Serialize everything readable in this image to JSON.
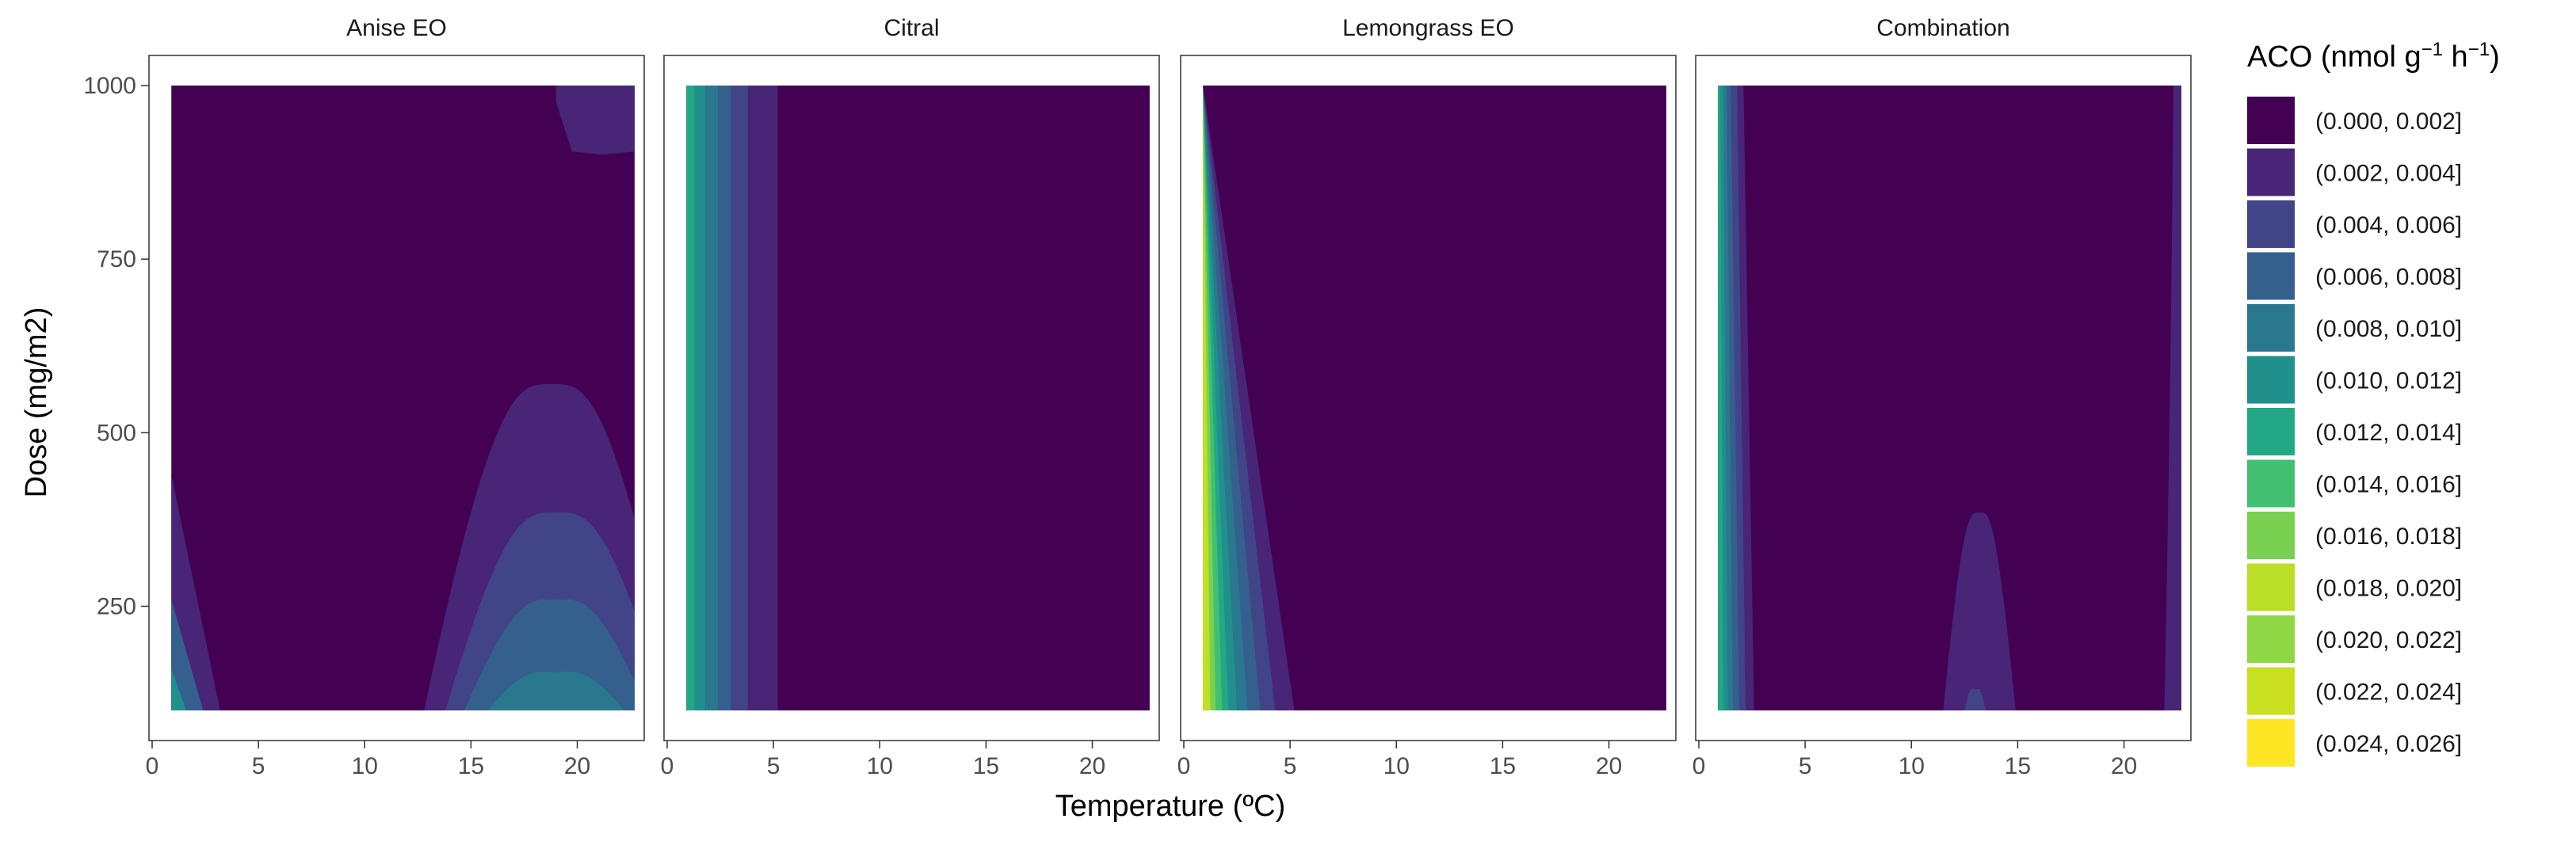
{
  "chart_data": {
    "type": "contour",
    "xlabel": "Temperature (ºC)",
    "ylabel": "Dose (mg/m2)",
    "xlim": [
      0,
      23
    ],
    "ylim": [
      100,
      1000
    ],
    "x_ticks": [
      0,
      5,
      10,
      15,
      20
    ],
    "y_ticks": [
      250,
      500,
      750,
      1000
    ],
    "grid": false,
    "legend_placement": "right",
    "legend": {
      "title": "ACO (nmol g",
      "title_sup1": "−1",
      "title_mid": " h",
      "title_sup2": "−1",
      "title_end": ")",
      "bins": [
        {
          "label": "(0.000, 0.002]",
          "color": "#440154"
        },
        {
          "label": "(0.002, 0.004]",
          "color": "#482576"
        },
        {
          "label": "(0.004, 0.006]",
          "color": "#414487"
        },
        {
          "label": "(0.006, 0.008]",
          "color": "#35608D"
        },
        {
          "label": "(0.008, 0.010]",
          "color": "#2A788E"
        },
        {
          "label": "(0.010, 0.012]",
          "color": "#21908C"
        },
        {
          "label": "(0.012, 0.014]",
          "color": "#22A884"
        },
        {
          "label": "(0.014, 0.016]",
          "color": "#43BF71"
        },
        {
          "label": "(0.016, 0.018]",
          "color": "#7AD151"
        },
        {
          "label": "(0.018, 0.020]",
          "color": "#BBDF27"
        },
        {
          "label": "(0.020, 0.022]",
          "color": "#8FD744"
        },
        {
          "label": "(0.022, 0.024]",
          "color": "#C8E020"
        },
        {
          "label": "(0.024, 0.026]",
          "color": "#FDE725"
        }
      ]
    },
    "panels": [
      {
        "name": "Anise EO",
        "background_level": 0,
        "regions": [
          {
            "level": 1,
            "kind": "bump",
            "x_center": 18.8,
            "half_width": 6.0,
            "peak_dose": 570,
            "base_dose": 100
          },
          {
            "level": 2,
            "kind": "bump",
            "x_center": 19.0,
            "half_width": 5.2,
            "peak_dose": 385,
            "base_dose": 100
          },
          {
            "level": 3,
            "kind": "bump",
            "x_center": 19.0,
            "half_width": 4.3,
            "peak_dose": 260,
            "base_dose": 100
          },
          {
            "level": 4,
            "kind": "bump",
            "x_center": 19.0,
            "half_width": 3.2,
            "peak_dose": 155,
            "base_dose": 100
          },
          {
            "level": 1,
            "kind": "corner",
            "x_start": 0.9,
            "x_end": 3.2,
            "dose_top": 440
          },
          {
            "level": 3,
            "kind": "corner",
            "x_start": 0.9,
            "x_end": 2.4,
            "dose_top": 260
          },
          {
            "level": 5,
            "kind": "corner",
            "x_start": 0.9,
            "x_end": 1.6,
            "dose_top": 160
          },
          {
            "level": 1,
            "kind": "top_right",
            "x_start": 19.0,
            "x_end": 22.7,
            "dose_bottom": 905
          }
        ]
      },
      {
        "name": "Citral",
        "background_level": 0,
        "stripes": [
          {
            "x_start": 0.9,
            "x_end": 1.3,
            "level": 6
          },
          {
            "x_start": 1.3,
            "x_end": 1.8,
            "level": 5
          },
          {
            "x_start": 1.8,
            "x_end": 2.4,
            "level": 4
          },
          {
            "x_start": 2.4,
            "x_end": 3.0,
            "level": 3
          },
          {
            "x_start": 3.0,
            "x_end": 3.8,
            "level": 2
          },
          {
            "x_start": 3.8,
            "x_end": 5.2,
            "level": 1
          }
        ]
      },
      {
        "name": "Lemongrass EO",
        "background_level": 0,
        "stripes_tapered": [
          {
            "x_bottom": 5.2,
            "level": 1
          },
          {
            "x_bottom": 4.3,
            "level": 2
          },
          {
            "x_bottom": 3.6,
            "level": 3
          },
          {
            "x_bottom": 3.0,
            "level": 4
          },
          {
            "x_bottom": 2.5,
            "level": 5
          },
          {
            "x_bottom": 2.1,
            "level": 6
          },
          {
            "x_bottom": 1.8,
            "level": 7
          },
          {
            "x_bottom": 1.5,
            "level": 8
          },
          {
            "x_bottom": 1.25,
            "level": 9
          },
          {
            "x_bottom": 1.05,
            "level": 11
          }
        ]
      },
      {
        "name": "Combination",
        "background_level": 0,
        "stripes_tapered": [
          {
            "x_top": 2.1,
            "x_bottom": 2.6,
            "level": 1
          },
          {
            "x_top": 1.8,
            "x_bottom": 2.2,
            "level": 2
          },
          {
            "x_top": 1.5,
            "x_bottom": 1.9,
            "level": 3
          },
          {
            "x_top": 1.3,
            "x_bottom": 1.6,
            "level": 4
          },
          {
            "x_top": 1.15,
            "x_bottom": 1.35,
            "level": 5
          },
          {
            "x_top": 1.0,
            "x_bottom": 1.15,
            "level": 6
          }
        ],
        "regions": [
          {
            "level": 1,
            "kind": "bump",
            "x_center": 13.2,
            "half_width": 1.7,
            "peak_dose": 385,
            "base_dose": 100
          },
          {
            "level": 2,
            "kind": "bump",
            "x_center": 13.0,
            "half_width": 0.5,
            "peak_dose": 130,
            "base_dose": 100
          },
          {
            "level": 1,
            "kind": "right_edge",
            "x_start": 21.9,
            "x_end": 22.7
          }
        ]
      }
    ]
  }
}
